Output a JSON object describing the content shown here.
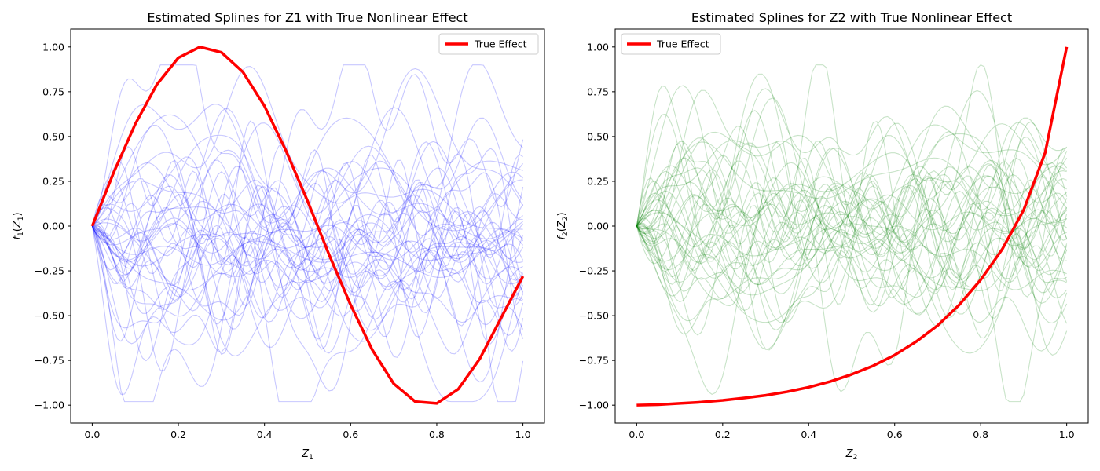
{
  "chart_data": [
    {
      "type": "line",
      "title": "Estimated Splines for Z1 with True Nonlinear Effect",
      "xlabel_var": "Z",
      "xlabel_sub": "1",
      "ylabel_prefix": "f",
      "ylabel_sub": "1",
      "ylabel_var": "Z",
      "xlim": [
        -0.05,
        1.05
      ],
      "ylim": [
        -1.1,
        1.1
      ],
      "xticks": [
        "0.0",
        "0.2",
        "0.4",
        "0.6",
        "0.8",
        "1.0"
      ],
      "xtick_values": [
        0,
        0.2,
        0.4,
        0.6,
        0.8,
        1.0
      ],
      "yticks": [
        "−1.00",
        "−0.75",
        "−0.50",
        "−0.25",
        "0.00",
        "0.25",
        "0.50",
        "0.75",
        "1.00"
      ],
      "ytick_values": [
        -1,
        -0.75,
        -0.5,
        -0.25,
        0,
        0.25,
        0.5,
        0.75,
        1
      ],
      "legend": {
        "label": "True Effect",
        "position": "upper right"
      },
      "true_effect": {
        "name": "True Effect",
        "color": "#ff0000",
        "x": [
          0,
          0.05,
          0.1,
          0.15,
          0.2,
          0.25,
          0.3,
          0.35,
          0.4,
          0.45,
          0.5,
          0.55,
          0.6,
          0.65,
          0.7,
          0.75,
          0.8,
          0.85,
          0.9,
          0.95,
          1.0
        ],
        "y": [
          0,
          0.3,
          0.57,
          0.79,
          0.94,
          1.0,
          0.97,
          0.86,
          0.67,
          0.42,
          0.14,
          -0.16,
          -0.44,
          -0.69,
          -0.88,
          -0.98,
          -0.99,
          -0.91,
          -0.74,
          -0.51,
          -0.28
        ]
      },
      "spline_color": "#0000ff",
      "spline_count": 40,
      "spline_seed": 7,
      "spline_amplitude": 0.32
    },
    {
      "type": "line",
      "title": "Estimated Splines for Z2 with True Nonlinear Effect",
      "xlabel_var": "Z",
      "xlabel_sub": "2",
      "ylabel_prefix": "f",
      "ylabel_sub": "2",
      "ylabel_var": "Z",
      "xlim": [
        -0.05,
        1.05
      ],
      "ylim": [
        -1.1,
        1.1
      ],
      "xticks": [
        "0.0",
        "0.2",
        "0.4",
        "0.6",
        "0.8",
        "1.0"
      ],
      "xtick_values": [
        0,
        0.2,
        0.4,
        0.6,
        0.8,
        1.0
      ],
      "yticks": [
        "−1.00",
        "−0.75",
        "−0.50",
        "−0.25",
        "0.00",
        "0.25",
        "0.50",
        "0.75",
        "1.00"
      ],
      "ytick_values": [
        -1,
        -0.75,
        -0.5,
        -0.25,
        0,
        0.25,
        0.5,
        0.75,
        1
      ],
      "legend": {
        "label": "True Effect",
        "position": "upper left"
      },
      "true_effect": {
        "name": "True Effect",
        "color": "#ff0000",
        "x": [
          0,
          0.05,
          0.1,
          0.15,
          0.2,
          0.25,
          0.3,
          0.35,
          0.4,
          0.45,
          0.5,
          0.55,
          0.6,
          0.65,
          0.7,
          0.75,
          0.8,
          0.85,
          0.9,
          0.95,
          1.0
        ],
        "y": [
          -1.0,
          -0.997,
          -0.99,
          -0.983,
          -0.973,
          -0.96,
          -0.945,
          -0.925,
          -0.9,
          -0.868,
          -0.828,
          -0.78,
          -0.72,
          -0.645,
          -0.555,
          -0.44,
          -0.3,
          -0.13,
          0.09,
          0.41,
          1.0
        ]
      },
      "spline_color": "#008000",
      "spline_count": 40,
      "spline_seed": 19,
      "spline_amplitude": 0.3
    }
  ]
}
